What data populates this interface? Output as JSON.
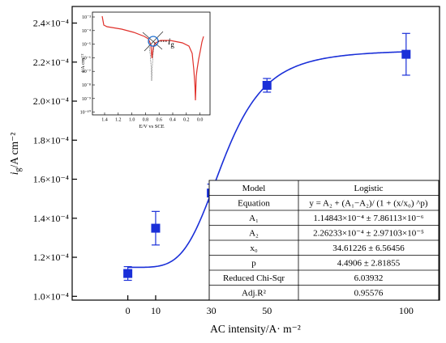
{
  "chart_data": {
    "type": "scatter",
    "xlabel": "AC intensity/A· m⁻²",
    "ylabel_main": "i",
    "ylabel_sub": "g",
    "ylabel_rest": "/A cm⁻²",
    "xlim": [
      -20,
      112
    ],
    "ylim": [
      9.805e-05,
      0.0002485
    ],
    "x_ticks": [
      0,
      10,
      30,
      50,
      100
    ],
    "y_ticks": [
      {
        "value": 0.0001,
        "label": "1.0×10⁻⁴"
      },
      {
        "value": 0.00012,
        "label": "1.2×10⁻⁴"
      },
      {
        "value": 0.00014,
        "label": "1.4×10⁻⁴"
      },
      {
        "value": 0.00016,
        "label": "1.6×10⁻⁴"
      },
      {
        "value": 0.00018,
        "label": "1.8×10⁻⁴"
      },
      {
        "value": 0.0002,
        "label": "2.0×10⁻⁴"
      },
      {
        "value": 0.00022,
        "label": "2.2×10⁻⁴"
      },
      {
        "value": 0.00024,
        "label": "2.4×10⁻⁴"
      }
    ],
    "series": [
      {
        "x": [
          0,
          10,
          30,
          50,
          100
        ],
        "y": [
          0.0001117,
          0.0001349,
          0.0001529,
          0.0002081,
          0.000224
        ],
        "error": [
          3.5e-06,
          8.6e-06,
          4.6e-06,
          3.5e-06,
          1.07e-05
        ],
        "color": "#1a2fd8"
      }
    ],
    "fit": {
      "model": "Logistic",
      "A1": 0.000114843,
      "A2": 0.000226233,
      "x0": 34.61226,
      "p": 4.4906,
      "color": "#1a2fd8"
    },
    "fit_table": {
      "rows": [
        {
          "label": "Model",
          "value": "Logistic"
        },
        {
          "label": "Equation",
          "value": "y = A₂ + (A₁−A₂)/ (1 + (x/x₀) ^p)"
        },
        {
          "label": "A₁",
          "value": "1.14843×10⁻⁴ ± 7.86113×10⁻⁶"
        },
        {
          "label": "A₂",
          "value": "2.26233×10⁻⁴ ± 2.97103×10⁻⁵"
        },
        {
          "label": "x₀",
          "value": "34.61226 ± 6.56456"
        },
        {
          "label": "p",
          "value": "4.4906 ± 2.81855"
        },
        {
          "label": "Reduced Chi-Sqr",
          "value": "6.03932"
        },
        {
          "label": "Adj.R²",
          "value": "0.95576"
        }
      ]
    },
    "inset": {
      "type": "line",
      "xlabel": "E/V vs SCE",
      "ylabel": "i/A cm⁻²",
      "annotation_main": "i",
      "annotation_sub": "g",
      "x_ticks": [
        "1.4",
        "1.2",
        "1.0",
        "0.8",
        "0.6",
        "0.4",
        "0.2",
        "0.0"
      ],
      "y_ticks": [
        "10⁻³",
        "10⁻⁴",
        "10⁻⁵",
        "10⁻⁶",
        "10⁻⁷",
        "10⁻⁸",
        "10⁻⁹",
        "10⁻¹⁰"
      ],
      "colors": {
        "curve": "#e0302a",
        "scan": "#444444",
        "marker": "#1f6fd0"
      }
    }
  }
}
